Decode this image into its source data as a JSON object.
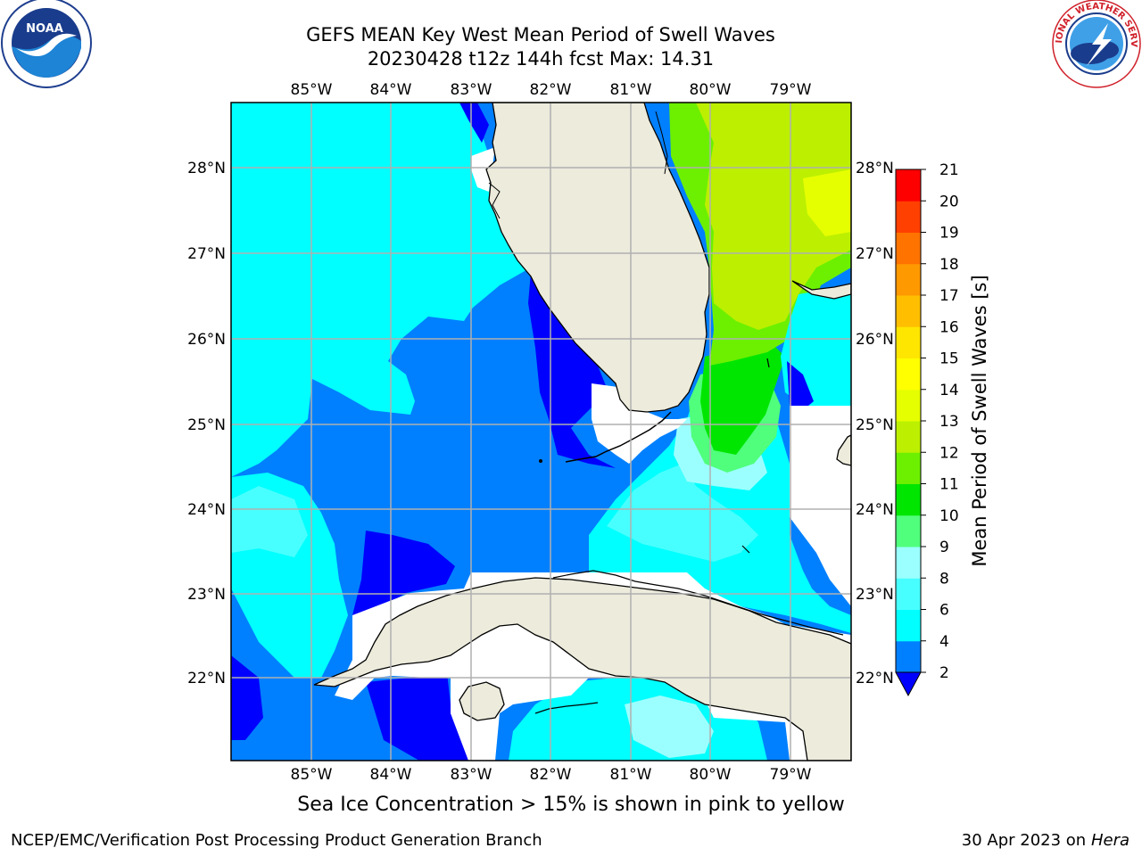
{
  "header": {
    "title_line1": "GEFS MEAN Key West Mean Period of Swell Waves",
    "title_line2": "20230428 t12z 144h fcst   Max: 14.31"
  },
  "logos": {
    "left": {
      "icon": "noaa-logo",
      "text": "NOAA"
    },
    "right": {
      "icon": "nws-logo",
      "ring_text": "NATIONAL WEATHER SERVICE"
    }
  },
  "map": {
    "lon_labels": [
      "85°W",
      "84°W",
      "83°W",
      "82°W",
      "81°W",
      "80°W",
      "79°W"
    ],
    "lat_labels": [
      "28°N",
      "27°N",
      "26°N",
      "25°N",
      "24°N",
      "23°N",
      "22°N"
    ],
    "colors": {
      "land": "#ecebdc",
      "c2": "#0000ff",
      "c4": "#0080ff",
      "c6": "#00ffff",
      "c8": "#48ffff",
      "c9": "#9cffff",
      "c10": "#50ff7c",
      "c11": "#00e600",
      "c12": "#6cf000",
      "c13": "#bcf000",
      "c14": "#e6ff00",
      "grid": "#b0b0b0"
    }
  },
  "colorbar": {
    "title": "Mean Period of Swell Waves [s]",
    "ticks": [
      "2",
      "4",
      "6",
      "8",
      "9",
      "10",
      "11",
      "12",
      "13",
      "14",
      "15",
      "16",
      "17",
      "18",
      "19",
      "20",
      "21"
    ],
    "colors": [
      "#0080ff",
      "#00ffff",
      "#48ffff",
      "#9cffff",
      "#50ff7c",
      "#00e600",
      "#6cf000",
      "#bcf000",
      "#e6ff00",
      "#ffff00",
      "#ffe600",
      "#ffbf00",
      "#ff9900",
      "#ff7300",
      "#ff4000",
      "#ff0000"
    ],
    "under_color": "#0000ff"
  },
  "caption": "Sea Ice Concentration > 15% is shown in pink to yellow",
  "footer": {
    "left": "NCEP/EMC/Verification Post Processing Product Generation Branch",
    "date": "30 Apr 2023 on ",
    "host": "Hera"
  }
}
